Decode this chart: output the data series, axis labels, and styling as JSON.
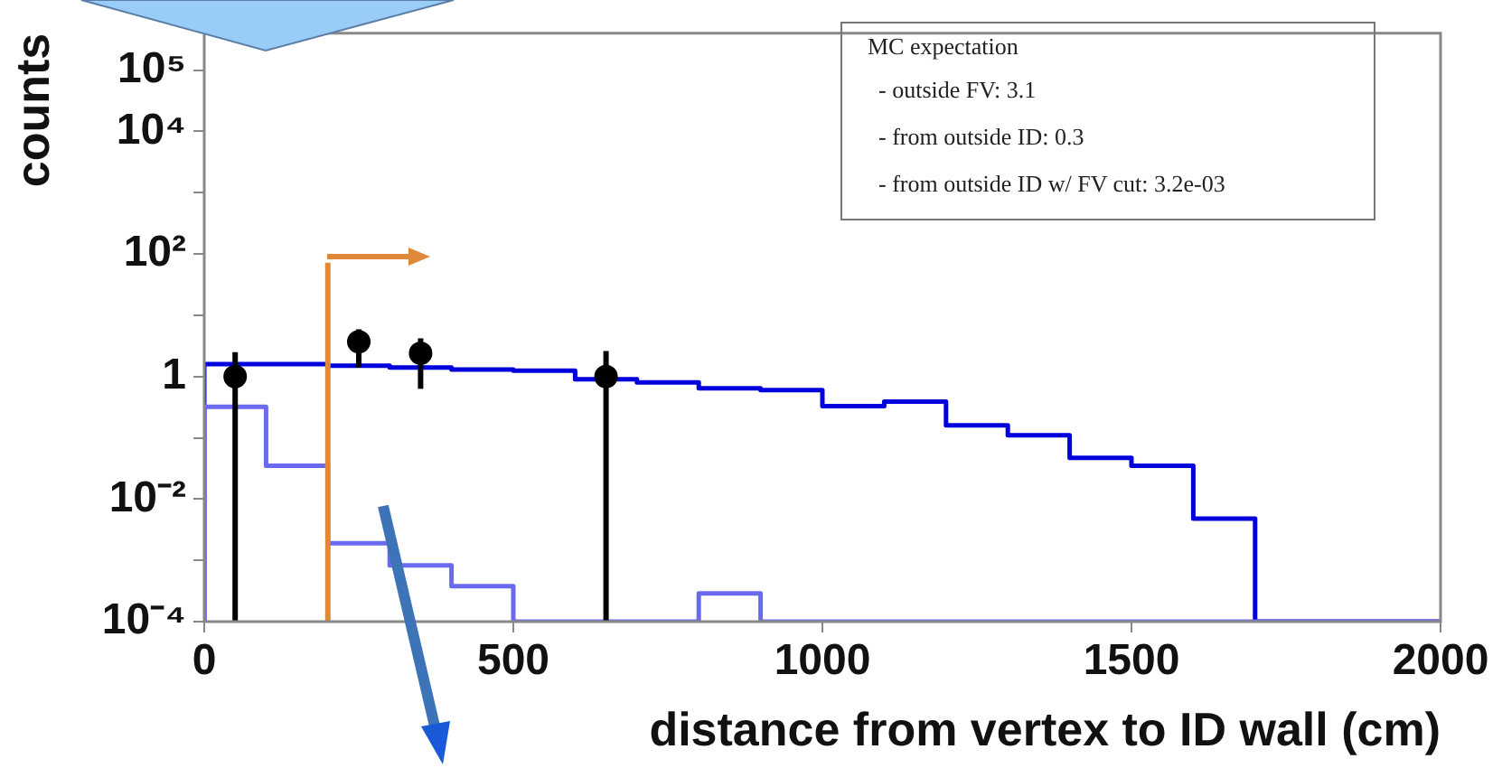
{
  "chart_data": {
    "type": "histogram",
    "xlabel": "distance from vertex to ID wall (cm)",
    "ylabel": "counts",
    "bins": [
      0,
      100,
      200,
      300,
      400,
      500,
      600,
      700,
      800,
      900,
      1000,
      1100,
      1200,
      1300,
      1400,
      1500,
      1600,
      1700,
      1800,
      1900,
      2000
    ],
    "series": [
      {
        "color": "#0000dd",
        "values": [
          1.6,
          1.6,
          1.5,
          1.4,
          1.3,
          1.25,
          0.9,
          0.8,
          0.64,
          0.6,
          0.33,
          0.39,
          0.16,
          0.11,
          0.047,
          0.035,
          0.0048,
          0.0001,
          0.0001,
          0.0001
        ]
      },
      {
        "color": "#6a6af0",
        "values": [
          0.32,
          0.035,
          0.0019,
          0.00083,
          0.00038,
          0.0001,
          0.0001,
          0.0001,
          0.00029,
          0.0001,
          0.0001,
          0.0001,
          0.0001,
          0.0001,
          0.0001,
          0.0001,
          0.0001,
          0.0001,
          0.0001,
          0.0001
        ]
      },
      {
        "type": "scatter",
        "color": "#000000",
        "x": [
          50,
          250,
          350,
          650
        ],
        "values": [
          1.0,
          3.7,
          2.4,
          1.0
        ],
        "errors": [
          [
            0.0001,
            2.5
          ],
          [
            1.4,
            5.9
          ],
          [
            0.63,
            4.2
          ],
          [
            0.0001,
            2.6
          ]
        ]
      }
    ],
    "xlim": [
      0,
      2000
    ],
    "xticks": [
      0,
      500,
      1000,
      1500,
      2000
    ],
    "ylim": [
      0.0001,
      400000
    ],
    "log": true,
    "yticks": [
      {
        "value": 0.0001,
        "label": "10⁻⁴"
      },
      {
        "value": 0.001,
        "label": null
      },
      {
        "value": 0.01,
        "label": "10⁻²"
      },
      {
        "value": 0.1,
        "label": null
      },
      {
        "value": 1,
        "label": "1"
      },
      {
        "value": 10,
        "label": null
      },
      {
        "value": 100,
        "label": "10²"
      },
      {
        "value": 1000,
        "label": null
      },
      {
        "value": 10000,
        "label": "10⁴"
      },
      {
        "value": 100000,
        "label": "10⁵"
      }
    ],
    "ref_lines": [
      {
        "axis": "x",
        "value": 200,
        "color": "#e0883a"
      }
    ],
    "annotations": [
      "MC expectation",
      "- outside FV: 3.1",
      "- from outside ID: 0.3",
      "- from outside ID w/ FV cut: 3.2e-03"
    ],
    "grid": false,
    "legend": false,
    "marker": "circle"
  }
}
